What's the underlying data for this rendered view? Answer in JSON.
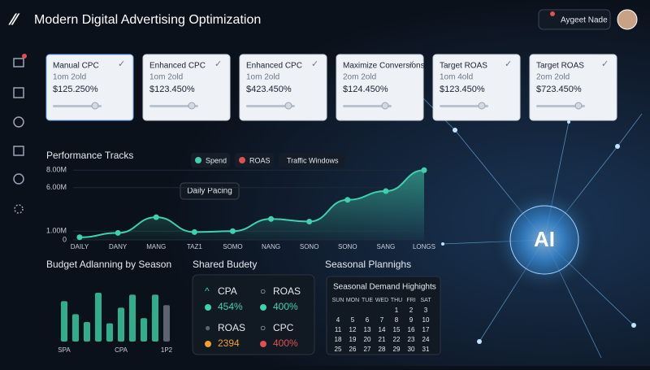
{
  "header": {
    "title": "Modern Digital Advertising Optimization",
    "user": "Aygeet Nade"
  },
  "cards": [
    {
      "title": "Manual CPC",
      "sub": "1om 2old",
      "value": "$125.250%"
    },
    {
      "title": "Enhanced CPC",
      "sub": "1om 2old",
      "value": "$123.450%"
    },
    {
      "title": "Enhanced CPC",
      "sub": "1om 2old",
      "value": "$423.450%"
    },
    {
      "title": "Maximize Conversions",
      "sub": "2om 2old",
      "value": "$124.450%"
    },
    {
      "title": "Target ROAS",
      "sub": "1om 4old",
      "value": "$123.450%"
    },
    {
      "title": "Target ROAS",
      "sub": "2om 2old",
      "value": "$723.450%"
    }
  ],
  "chart_data": [
    {
      "type": "line",
      "title": "Performance Tracks",
      "legend": [
        "Spend",
        "ROAS",
        "Traffic Windows"
      ],
      "annotation": "Daily Pacing",
      "categories": [
        "DAILY",
        "DANY",
        "MANG",
        "TAZ1",
        "SOMO",
        "NANG",
        "SONO",
        "SONO",
        "SANG",
        "LONGS"
      ],
      "series": [
        {
          "name": "Spend",
          "color": "#3fd1ad",
          "values": [
            0.3,
            0.8,
            2.6,
            0.9,
            1.0,
            2.4,
            2.1,
            4.6,
            5.6,
            8.0
          ]
        }
      ],
      "ylim": [
        0,
        8.4
      ],
      "yticks": [
        {
          "value": 0,
          "label": "0"
        },
        {
          "value": 1,
          "label": "1.00M"
        },
        {
          "value": 6,
          "label": "6.00M"
        },
        {
          "value": 8,
          "label": "8.00M"
        }
      ]
    },
    {
      "type": "bar",
      "title": "Budget Adlanning  by  Season",
      "categories": [
        "SPA",
        null,
        null,
        null,
        null,
        "CPA",
        null,
        null,
        null,
        "1P2"
      ],
      "values": [
        62,
        42,
        30,
        75,
        28,
        52,
        72,
        36,
        72,
        56
      ],
      "color": "#2fae8c",
      "ylim": [
        0,
        100
      ]
    }
  ],
  "shared": {
    "title": "Shared Budety",
    "items": [
      {
        "label": "CPA",
        "value": "454%"
      },
      {
        "label": "ROAS",
        "value": "400%"
      },
      {
        "label": "ROAS",
        "value": "2394"
      },
      {
        "label": "CPC",
        "value": "400%"
      }
    ]
  },
  "calendar": {
    "section": "Seasonal Plannighs",
    "title": "Seasonal Demand Highights",
    "weekdays": [
      "SUN",
      "MON",
      "TUE",
      "WED",
      "THU",
      "FRI",
      "SAT"
    ],
    "rows": [
      [
        null,
        null,
        null,
        null,
        1,
        2,
        3
      ],
      [
        4,
        5,
        6,
        7,
        8,
        9,
        10
      ],
      [
        11,
        12,
        13,
        14,
        15,
        16,
        17
      ],
      [
        18,
        19,
        20,
        21,
        22,
        23,
        24
      ],
      [
        25,
        26,
        27,
        28,
        29,
        30,
        31
      ]
    ]
  },
  "ai_label": "AI"
}
